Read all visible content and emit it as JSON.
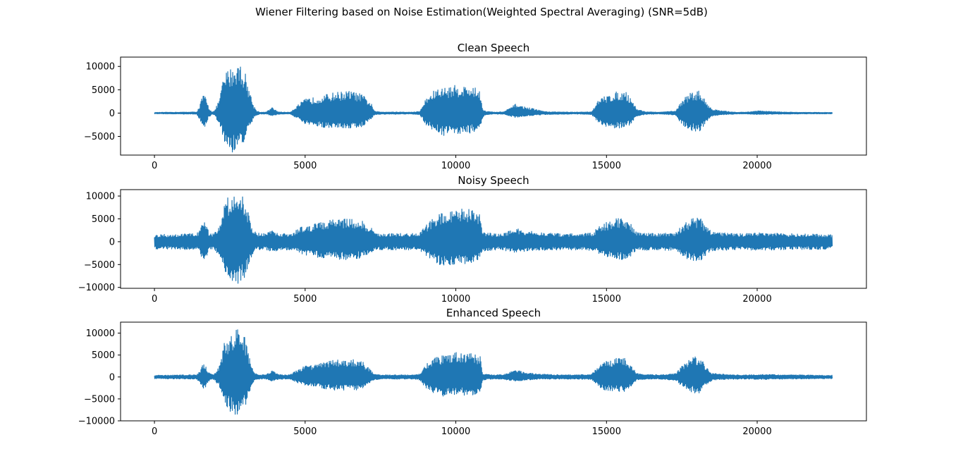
{
  "figure": {
    "suptitle": "Wiener Filtering based on Noise Estimation(Weighted Spectral Averaging) (SNR=5dB)",
    "line_color": "#1f77b4"
  },
  "chart_data": [
    {
      "type": "line",
      "title": "Clean Speech",
      "xlabel": "",
      "ylabel": "",
      "xlim": [
        -1125,
        23625
      ],
      "ylim": [
        -9000,
        12000
      ],
      "xticks": [
        0,
        5000,
        10000,
        15000,
        20000
      ],
      "yticks": [
        -5000,
        0,
        5000,
        10000
      ],
      "xticklabels": [
        "0",
        "5000",
        "10000",
        "15000",
        "20000"
      ],
      "yticklabels": [
        "−5000",
        "0",
        "5000",
        "10000"
      ],
      "noise_floor": 150,
      "series": [
        {
          "style": "envelope",
          "x": [
            0,
            1400,
            1500,
            1600,
            1700,
            1800,
            1900,
            2000,
            2150,
            2300,
            2450,
            2600,
            2800,
            3000,
            3150,
            3300,
            3400,
            3500,
            3700,
            3900,
            4100,
            4300,
            4500,
            4800,
            5000,
            5400,
            6000,
            6500,
            6900,
            7200,
            7300,
            7500,
            8000,
            8500,
            8800,
            9000,
            9300,
            9600,
            10000,
            10500,
            10800,
            10900,
            11000,
            11300,
            11600,
            12000,
            12200,
            12600,
            13000,
            13500,
            14000,
            14500,
            14700,
            14900,
            15300,
            15600,
            15800,
            16000,
            16300,
            16700,
            17000,
            17300,
            17500,
            17800,
            18100,
            18300,
            18500,
            18800,
            19300,
            19600,
            20000,
            21000,
            22500
          ],
          "upper": [
            150,
            250,
            1500,
            4000,
            3500,
            1200,
            300,
            500,
            3000,
            8000,
            9500,
            10000,
            11000,
            9000,
            5000,
            1500,
            500,
            200,
            200,
            1200,
            300,
            200,
            200,
            2000,
            3000,
            3500,
            4500,
            4800,
            4000,
            2000,
            400,
            250,
            250,
            200,
            350,
            3000,
            5000,
            5500,
            6000,
            5800,
            5000,
            800,
            400,
            200,
            300,
            2000,
            1500,
            900,
            300,
            250,
            200,
            300,
            2500,
            3500,
            4500,
            4800,
            3500,
            900,
            300,
            200,
            300,
            500,
            2800,
            4500,
            4800,
            2500,
            900,
            500,
            200,
            200,
            500,
            200,
            150
          ],
          "lower": [
            -150,
            -250,
            -1500,
            -3200,
            -2800,
            -1000,
            -300,
            -500,
            -2500,
            -6000,
            -8000,
            -8500,
            -7500,
            -6000,
            -3500,
            -1000,
            -500,
            -200,
            -200,
            -600,
            -300,
            -200,
            -200,
            -1500,
            -2500,
            -3000,
            -3200,
            -3300,
            -3000,
            -1200,
            -400,
            -250,
            -250,
            -200,
            -350,
            -2500,
            -4000,
            -4800,
            -4500,
            -4300,
            -3500,
            -800,
            -400,
            -200,
            -300,
            -1000,
            -700,
            -500,
            -300,
            -250,
            -200,
            -300,
            -2000,
            -3000,
            -3200,
            -3300,
            -2500,
            -700,
            -300,
            -200,
            -300,
            -500,
            -2500,
            -3800,
            -4000,
            -2000,
            -700,
            -400,
            -200,
            -200,
            -300,
            -200,
            -150
          ]
        }
      ]
    },
    {
      "type": "line",
      "title": "Noisy Speech",
      "xlabel": "",
      "ylabel": "",
      "xlim": [
        -1125,
        23625
      ],
      "ylim": [
        -10200,
        11400
      ],
      "xticks": [
        0,
        5000,
        10000,
        15000,
        20000
      ],
      "yticks": [
        -10000,
        -5000,
        0,
        5000,
        10000
      ],
      "xticklabels": [
        "0",
        "5000",
        "10000",
        "15000",
        "20000"
      ],
      "yticklabels": [
        "−10000",
        "−5000",
        "0",
        "5000",
        "10000"
      ],
      "noise_floor": 1600,
      "series": [
        {
          "style": "envelope",
          "x": [
            0,
            1400,
            1500,
            1600,
            1700,
            1800,
            1900,
            2000,
            2150,
            2300,
            2450,
            2600,
            2800,
            3000,
            3150,
            3300,
            3400,
            3500,
            3700,
            3900,
            4100,
            4300,
            4500,
            4800,
            5000,
            5400,
            6000,
            6500,
            6900,
            7200,
            7300,
            7500,
            8000,
            8500,
            8800,
            9000,
            9300,
            9600,
            10000,
            10500,
            10800,
            10900,
            11000,
            11300,
            11600,
            12000,
            12200,
            12600,
            13000,
            13500,
            14000,
            14500,
            14700,
            14900,
            15300,
            15600,
            15800,
            16000,
            16300,
            16700,
            17000,
            17300,
            17500,
            17800,
            18100,
            18300,
            18500,
            18800,
            19300,
            19600,
            20000,
            21000,
            22500
          ],
          "upper": [
            1600,
            1800,
            2500,
            4500,
            4000,
            2200,
            1800,
            2000,
            3500,
            8500,
            10000,
            10500,
            11200,
            9500,
            5500,
            2500,
            2000,
            1800,
            1800,
            2500,
            1900,
            1800,
            1800,
            3000,
            3500,
            4000,
            5000,
            5300,
            4500,
            3000,
            2000,
            1800,
            1800,
            1800,
            1900,
            3500,
            5500,
            6500,
            7500,
            7000,
            6000,
            2200,
            2000,
            1800,
            1900,
            3000,
            2500,
            2200,
            1900,
            1800,
            1800,
            1900,
            3000,
            4000,
            5000,
            5300,
            4000,
            2200,
            1900,
            1800,
            1900,
            2000,
            3500,
            5000,
            5300,
            3500,
            2200,
            2000,
            1800,
            1800,
            2000,
            1800,
            1600
          ],
          "lower": [
            -1600,
            -1800,
            -2500,
            -4000,
            -3500,
            -2200,
            -1800,
            -2000,
            -3000,
            -6500,
            -8500,
            -9000,
            -9500,
            -8000,
            -4500,
            -2200,
            -2000,
            -1800,
            -1800,
            -2200,
            -1900,
            -1800,
            -1800,
            -2500,
            -3000,
            -3500,
            -3800,
            -4000,
            -3500,
            -2500,
            -2000,
            -1800,
            -1800,
            -1800,
            -1900,
            -3000,
            -4500,
            -5500,
            -5000,
            -4800,
            -4000,
            -2200,
            -2000,
            -1800,
            -1900,
            -2500,
            -2200,
            -2000,
            -1900,
            -1800,
            -1800,
            -1900,
            -2500,
            -3500,
            -3800,
            -4000,
            -3200,
            -2000,
            -1900,
            -1800,
            -1900,
            -2000,
            -3000,
            -4300,
            -4600,
            -3000,
            -2000,
            -1900,
            -1800,
            -1800,
            -1900,
            -1800,
            -1600
          ]
        }
      ]
    },
    {
      "type": "line",
      "title": "Enhanced Speech",
      "xlabel": "",
      "ylabel": "",
      "xlim": [
        -1125,
        23625
      ],
      "ylim": [
        -10000,
        12500
      ],
      "xticks": [
        0,
        5000,
        10000,
        15000,
        20000
      ],
      "yticks": [
        -10000,
        -5000,
        0,
        5000,
        10000
      ],
      "xticklabels": [
        "0",
        "5000",
        "10000",
        "15000",
        "20000"
      ],
      "yticklabels": [
        "−10000",
        "−5000",
        "0",
        "5000",
        "10000"
      ],
      "noise_floor": 400,
      "series": [
        {
          "style": "envelope",
          "x": [
            0,
            1400,
            1500,
            1600,
            1700,
            1800,
            1900,
            2000,
            2150,
            2300,
            2450,
            2600,
            2800,
            3000,
            3150,
            3300,
            3400,
            3500,
            3700,
            3900,
            4100,
            4300,
            4500,
            4800,
            5000,
            5400,
            6000,
            6500,
            6900,
            7200,
            7300,
            7500,
            8000,
            8500,
            8800,
            9000,
            9300,
            9600,
            10000,
            10500,
            10800,
            10900,
            11000,
            11300,
            11600,
            12000,
            12200,
            12600,
            13000,
            13500,
            14000,
            14500,
            14700,
            14900,
            15300,
            15600,
            15800,
            16000,
            16300,
            16700,
            17000,
            17300,
            17500,
            17800,
            18100,
            18300,
            18500,
            18800,
            19300,
            19600,
            20000,
            21000,
            22500
          ],
          "upper": [
            400,
            500,
            1200,
            3000,
            2500,
            1000,
            600,
            700,
            2500,
            7500,
            9500,
            10500,
            11500,
            9000,
            4500,
            1000,
            700,
            500,
            500,
            1500,
            600,
            500,
            500,
            2000,
            2500,
            3000,
            4000,
            4200,
            3500,
            1500,
            700,
            500,
            500,
            500,
            700,
            3000,
            4500,
            5000,
            5800,
            5500,
            5000,
            800,
            600,
            500,
            600,
            1800,
            1200,
            800,
            600,
            500,
            500,
            600,
            2500,
            3500,
            4200,
            4500,
            3000,
            800,
            600,
            500,
            600,
            800,
            2500,
            4500,
            4800,
            2500,
            900,
            700,
            500,
            500,
            600,
            500,
            400
          ],
          "lower": [
            -400,
            -500,
            -1200,
            -2800,
            -2300,
            -1000,
            -600,
            -700,
            -2200,
            -5500,
            -7500,
            -8500,
            -9000,
            -7000,
            -3500,
            -1000,
            -700,
            -500,
            -500,
            -1000,
            -600,
            -500,
            -500,
            -1500,
            -2000,
            -2500,
            -3000,
            -3200,
            -2800,
            -1200,
            -700,
            -500,
            -500,
            -500,
            -700,
            -2500,
            -3800,
            -4500,
            -4000,
            -4500,
            -3500,
            -800,
            -600,
            -500,
            -600,
            -1000,
            -800,
            -600,
            -500,
            -500,
            -500,
            -600,
            -2000,
            -3000,
            -3300,
            -3500,
            -2500,
            -700,
            -600,
            -500,
            -600,
            -800,
            -2200,
            -3500,
            -3800,
            -2000,
            -800,
            -600,
            -500,
            -500,
            -600,
            -500,
            -400
          ]
        }
      ]
    }
  ]
}
